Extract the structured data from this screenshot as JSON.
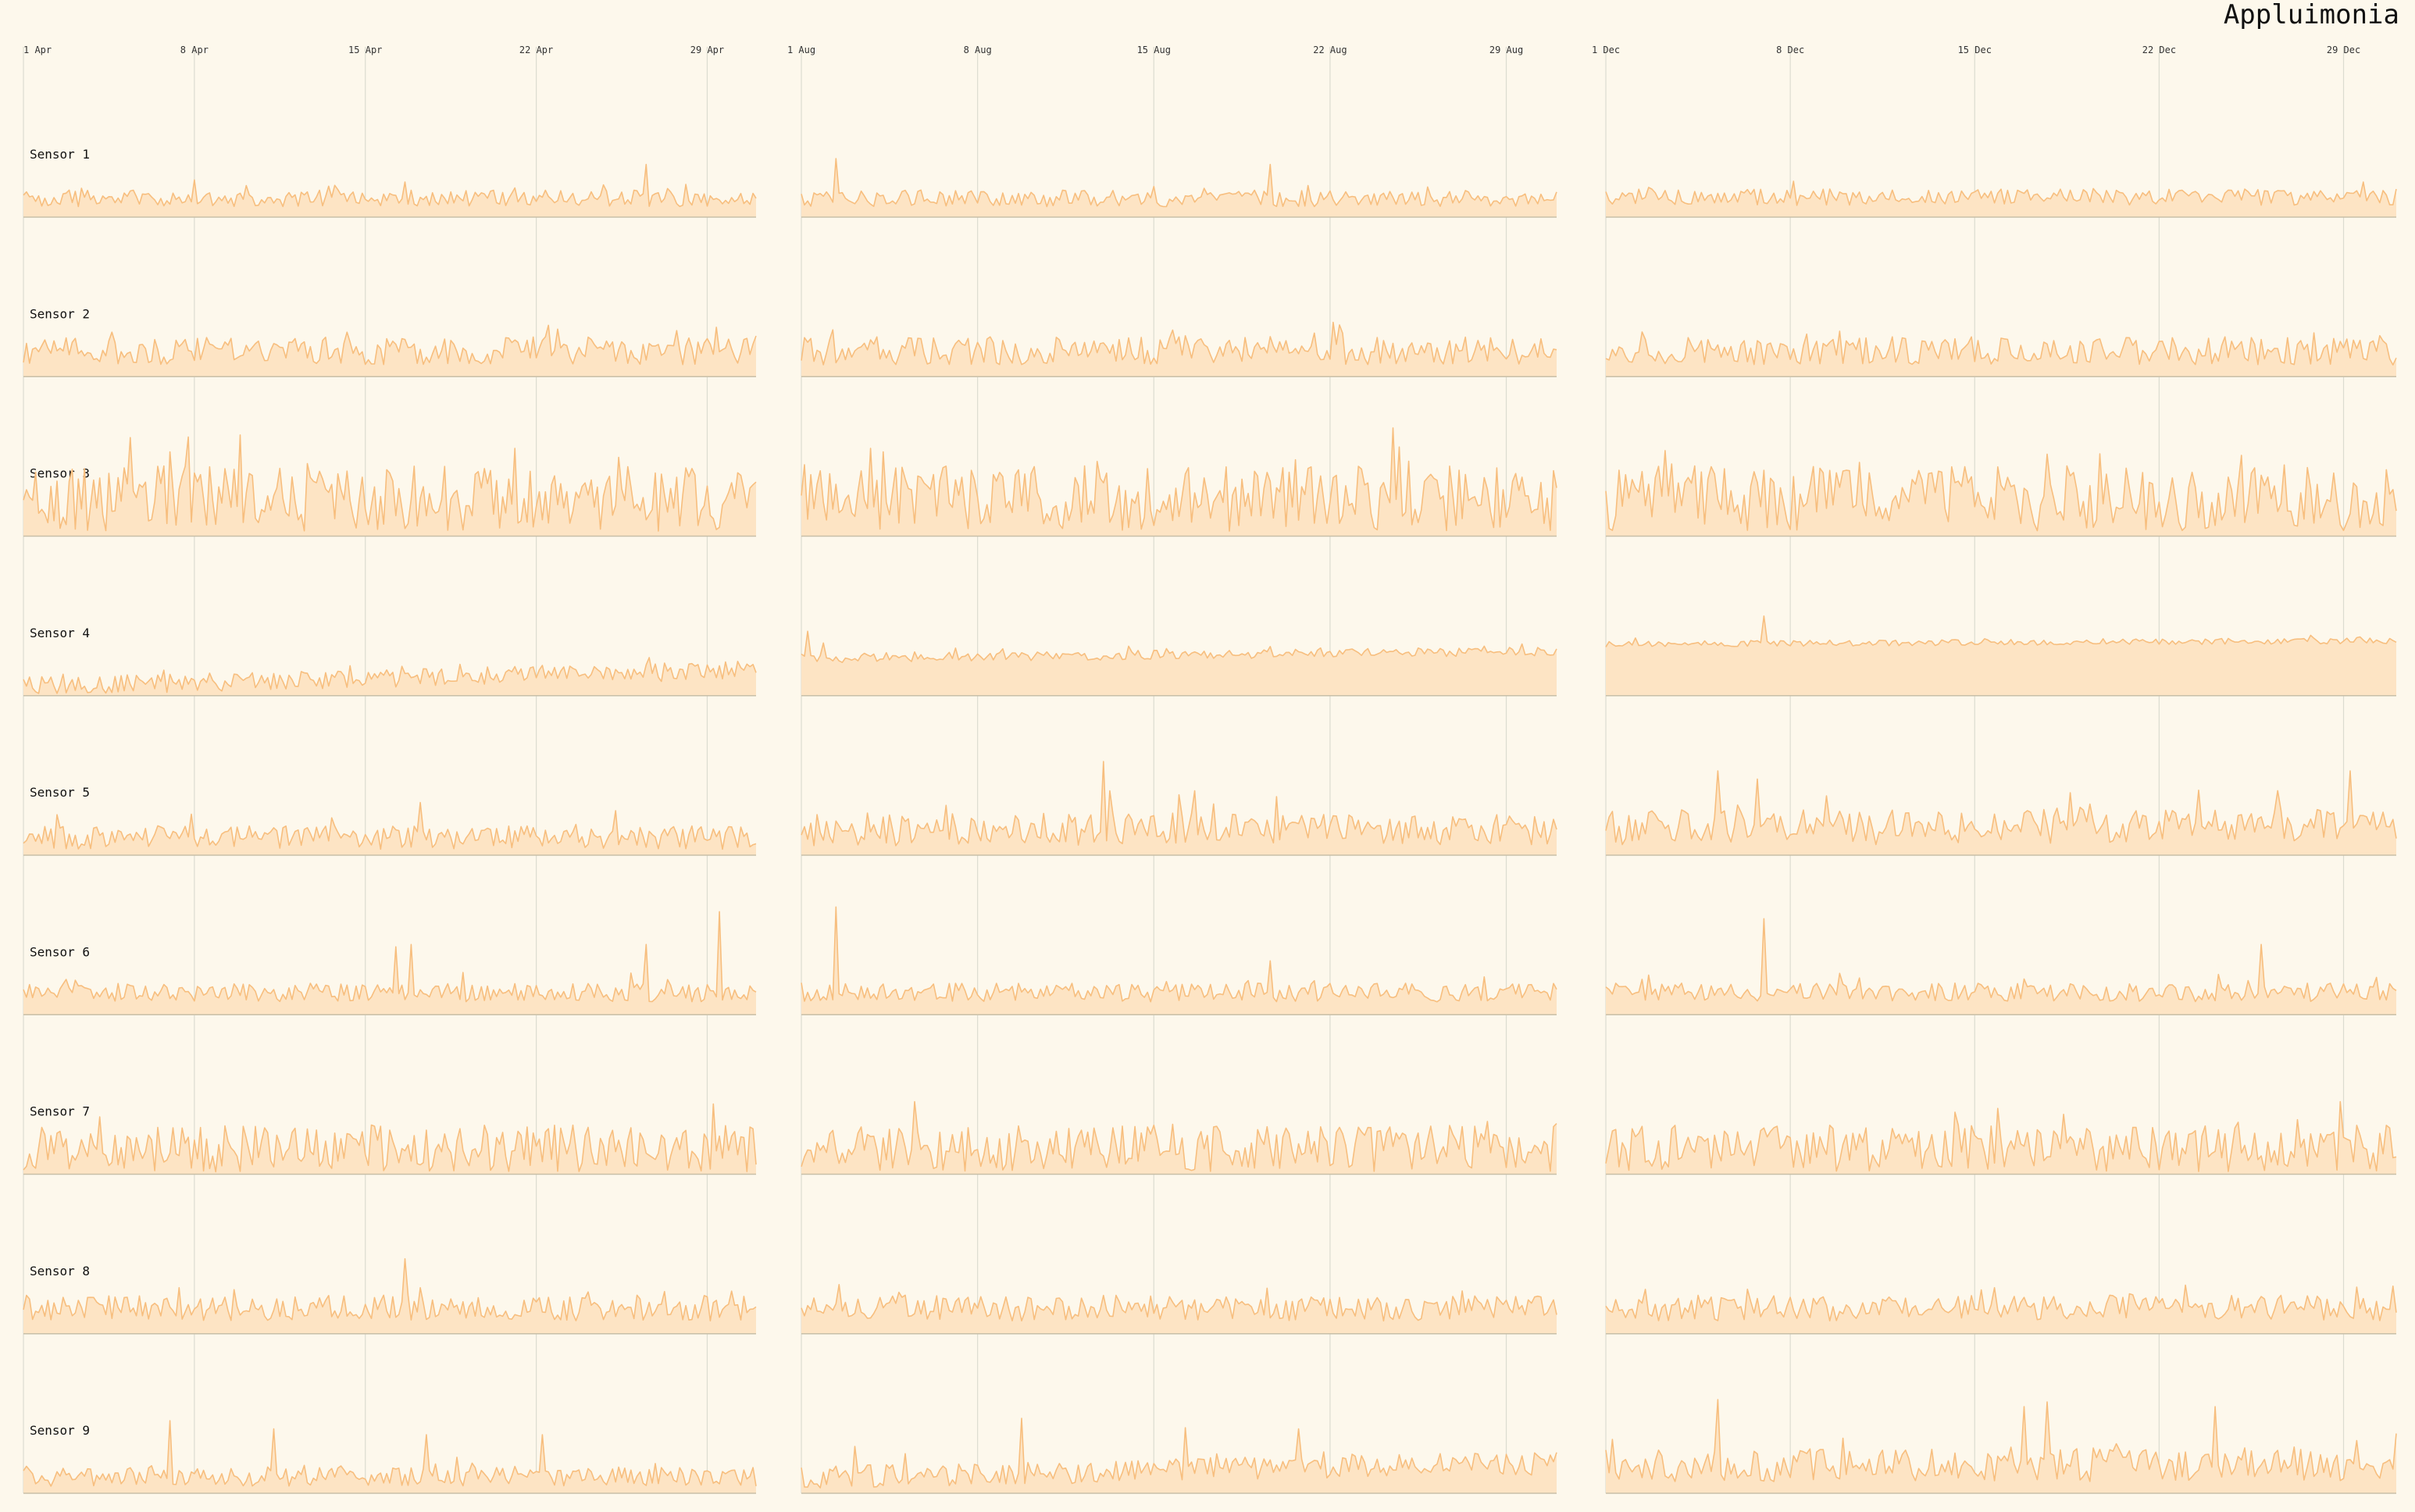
{
  "chart_data": {
    "type": "area",
    "title": "Appluimonia",
    "colors": {
      "line": "#f7be7e",
      "fill": "#fde4c4",
      "background": "#fdf8ec",
      "grid": "#dcdcd0"
    },
    "grid": "vertical",
    "x_axis_position": "top",
    "periods": [
      {
        "start": "2021-04-01",
        "end": "2021-05-01",
        "ticks": [
          "1 Apr",
          "8 Apr",
          "15 Apr",
          "22 Apr",
          "29 Apr"
        ]
      },
      {
        "start": "2021-08-01",
        "end": "2021-08-31",
        "ticks": [
          "1 Aug",
          "8 Aug",
          "15 Aug",
          "22 Aug",
          "29 Aug"
        ]
      },
      {
        "start": "2021-12-01",
        "end": "2021-12-31",
        "ticks": [
          "1 Dec",
          "8 Dec",
          "15 Dec",
          "22 Dec",
          "29 Dec"
        ]
      }
    ],
    "series": [
      {
        "name": "Sensor 1",
        "profiles": [
          {
            "base": 0.16,
            "noise": 0.07,
            "spikes": [
              {
                "at": 0.85,
                "h": 0.45
              },
              {
                "at": 0.52,
                "h": 0.3
              }
            ]
          },
          {
            "base": 0.16,
            "noise": 0.07,
            "spikes": [
              {
                "at": 0.045,
                "h": 0.5
              },
              {
                "at": 0.62,
                "h": 0.45
              }
            ]
          },
          {
            "base": 0.17,
            "noise": 0.07,
            "spikes": [
              {
                "at": 0.96,
                "h": 0.3
              }
            ]
          }
        ]
      },
      {
        "name": "Sensor 2",
        "profiles": [
          {
            "base": 0.22,
            "noise": 0.12,
            "spikes": [
              {
                "at": 0.12,
                "h": 0.38
              },
              {
                "at": 0.44,
                "h": 0.38
              }
            ]
          },
          {
            "base": 0.22,
            "noise": 0.12,
            "spikes": [
              {
                "at": 0.04,
                "h": 0.4
              }
            ]
          },
          {
            "base": 0.22,
            "noise": 0.12,
            "spikes": [
              {
                "at": 0.98,
                "h": 0.35
              }
            ]
          }
        ]
      },
      {
        "name": "Sensor 3",
        "profiles": [
          {
            "base": 0.32,
            "noise": 0.28,
            "spikes": [
              {
                "at": 0.67,
                "h": 0.75
              },
              {
                "at": 0.2,
                "h": 0.72
              }
            ]
          },
          {
            "base": 0.32,
            "noise": 0.28,
            "spikes": [
              {
                "at": 0.09,
                "h": 0.75
              },
              {
                "at": 0.11,
                "h": 0.72
              }
            ]
          },
          {
            "base": 0.32,
            "noise": 0.28,
            "spikes": [
              {
                "at": 0.56,
                "h": 0.7
              }
            ]
          }
        ]
      },
      {
        "name": "Sensor 4",
        "profiles": [
          {
            "base": 0.08,
            "trend": 0.14,
            "noise": 0.08,
            "spikes": []
          },
          {
            "base": 0.32,
            "trend": 0.06,
            "noise": 0.04,
            "spikes": [
              {
                "at": 0.01,
                "h": 0.55
              },
              {
                "at": 0.03,
                "h": 0.45
              },
              {
                "at": 0.62,
                "h": 0.42
              }
            ]
          },
          {
            "base": 0.44,
            "trend": 0.03,
            "noise": 0.025,
            "spikes": [
              {
                "at": 0.2,
                "h": 0.68
              }
            ]
          }
        ]
      },
      {
        "name": "Sensor 5",
        "profiles": [
          {
            "base": 0.15,
            "noise": 0.1,
            "spikes": [
              {
                "at": 0.23,
                "h": 0.35
              },
              {
                "at": 0.54,
                "h": 0.45
              },
              {
                "at": 0.81,
                "h": 0.38
              }
            ]
          },
          {
            "base": 0.22,
            "noise": 0.14,
            "spikes": [
              {
                "at": 0.4,
                "h": 0.8
              },
              {
                "at": 0.41,
                "h": 0.55
              },
              {
                "at": 0.52,
                "h": 0.55
              },
              {
                "at": 0.63,
                "h": 0.5
              }
            ]
          },
          {
            "base": 0.24,
            "noise": 0.15,
            "spikes": [
              {
                "at": 0.14,
                "h": 0.72
              },
              {
                "at": 0.94,
                "h": 0.72
              },
              {
                "at": 0.19,
                "h": 0.65
              }
            ]
          }
        ]
      },
      {
        "name": "Sensor 6",
        "profiles": [
          {
            "base": 0.19,
            "noise": 0.08,
            "spikes": [
              {
                "at": 0.51,
                "h": 0.58
              },
              {
                "at": 0.53,
                "h": 0.6
              },
              {
                "at": 0.85,
                "h": 0.6
              },
              {
                "at": 0.95,
                "h": 0.88
              }
            ]
          },
          {
            "base": 0.19,
            "noise": 0.08,
            "spikes": [
              {
                "at": 0.045,
                "h": 0.92
              },
              {
                "at": 0.62,
                "h": 0.46
              }
            ]
          },
          {
            "base": 0.19,
            "noise": 0.08,
            "spikes": [
              {
                "at": 0.2,
                "h": 0.82
              },
              {
                "at": 0.83,
                "h": 0.6
              }
            ]
          }
        ]
      },
      {
        "name": "Sensor 7",
        "profiles": [
          {
            "base": 0.22,
            "noise": 0.2,
            "spikes": [
              {
                "at": 0.94,
                "h": 0.6
              }
            ]
          },
          {
            "base": 0.22,
            "noise": 0.2,
            "spikes": [
              {
                "at": 0.15,
                "h": 0.62
              }
            ]
          },
          {
            "base": 0.22,
            "noise": 0.2,
            "spikes": [
              {
                "at": 0.93,
                "h": 0.62
              }
            ]
          }
        ]
      },
      {
        "name": "Sensor 8",
        "profiles": [
          {
            "base": 0.22,
            "noise": 0.11,
            "spikes": [
              {
                "at": 0.52,
                "h": 0.64
              }
            ]
          },
          {
            "base": 0.22,
            "noise": 0.11,
            "spikes": [
              {
                "at": 0.05,
                "h": 0.42
              }
            ]
          },
          {
            "base": 0.22,
            "noise": 0.11,
            "spikes": [
              {
                "at": 0.18,
                "h": 0.38
              }
            ]
          }
        ]
      },
      {
        "name": "Sensor 9",
        "profiles": [
          {
            "base": 0.14,
            "noise": 0.08,
            "spikes": [
              {
                "at": 0.2,
                "h": 0.62
              },
              {
                "at": 0.34,
                "h": 0.55
              },
              {
                "at": 0.55,
                "h": 0.5
              },
              {
                "at": 0.71,
                "h": 0.5
              }
            ]
          },
          {
            "base": 0.14,
            "trend": 0.12,
            "noise": 0.1,
            "spikes": [
              {
                "at": 0.29,
                "h": 0.64
              },
              {
                "at": 0.51,
                "h": 0.56
              },
              {
                "at": 0.66,
                "h": 0.55
              },
              {
                "at": 0.07,
                "h": 0.4
              }
            ]
          },
          {
            "base": 0.24,
            "noise": 0.14,
            "spikes": [
              {
                "at": 0.14,
                "h": 0.8
              },
              {
                "at": 0.53,
                "h": 0.74
              },
              {
                "at": 0.56,
                "h": 0.78
              },
              {
                "at": 0.77,
                "h": 0.74
              }
            ]
          }
        ]
      }
    ]
  }
}
